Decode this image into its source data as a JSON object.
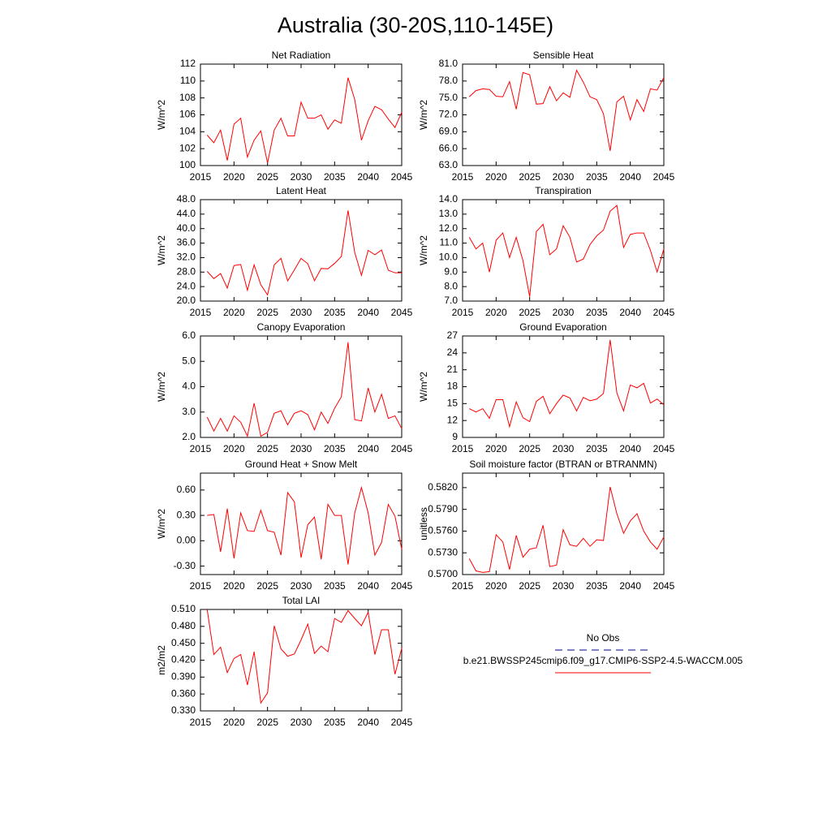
{
  "title": "Australia (30-20S,110-145E)",
  "chart_data": [
    {
      "type": "line",
      "title": "Net Radiation",
      "ylabel": "W/m^2",
      "xlim": [
        2015,
        2045
      ],
      "xticks": [
        2015,
        2020,
        2025,
        2030,
        2035,
        2040,
        2045
      ],
      "ylim": [
        100,
        112
      ],
      "yticks": [
        100,
        102,
        104,
        106,
        108,
        110,
        112
      ],
      "x": [
        2016,
        2017,
        2018,
        2019,
        2020,
        2021,
        2022,
        2023,
        2024,
        2025,
        2026,
        2027,
        2028,
        2029,
        2030,
        2031,
        2032,
        2033,
        2034,
        2035,
        2036,
        2037,
        2038,
        2039,
        2040,
        2041,
        2042,
        2043,
        2044,
        2045
      ],
      "series": [
        {
          "color": "#ff0000",
          "values": [
            103.6,
            102.7,
            104.2,
            100.6,
            104.9,
            105.6,
            101.0,
            103.0,
            104.1,
            100.3,
            104.2,
            105.6,
            103.5,
            103.5,
            107.5,
            105.6,
            105.6,
            106.0,
            104.3,
            105.4,
            105.0,
            110.4,
            107.8,
            103.0,
            105.3,
            107.0,
            106.6,
            105.5,
            104.5,
            106.3
          ]
        }
      ]
    },
    {
      "type": "line",
      "title": "Sensible Heat",
      "ylabel": "W/m^2",
      "xlim": [
        2015,
        2045
      ],
      "xticks": [
        2015,
        2020,
        2025,
        2030,
        2035,
        2040,
        2045
      ],
      "ylim": [
        63,
        81
      ],
      "yticks": [
        {
          "value": 63,
          "label": "63.0"
        },
        {
          "value": 66,
          "label": "66.0"
        },
        {
          "value": 69,
          "label": "69.0"
        },
        {
          "value": 72,
          "label": "72.0"
        },
        {
          "value": 75,
          "label": "75.0"
        },
        {
          "value": 78,
          "label": "78.0"
        },
        {
          "value": 81,
          "label": "81.0"
        }
      ],
      "x": [
        2016,
        2017,
        2018,
        2019,
        2020,
        2021,
        2022,
        2023,
        2024,
        2025,
        2026,
        2027,
        2028,
        2029,
        2030,
        2031,
        2032,
        2033,
        2034,
        2035,
        2036,
        2037,
        2038,
        2039,
        2040,
        2041,
        2042,
        2043,
        2044,
        2045
      ],
      "series": [
        {
          "color": "#ff0000",
          "values": [
            75.2,
            76.3,
            76.6,
            76.5,
            75.3,
            75.2,
            77.9,
            73.0,
            79.5,
            79.1,
            73.9,
            74.0,
            77.0,
            74.5,
            75.9,
            75.1,
            79.9,
            77.8,
            75.2,
            74.7,
            72.2,
            65.6,
            74.3,
            75.3,
            71.1,
            74.7,
            72.6,
            76.6,
            76.4,
            78.6
          ]
        }
      ]
    },
    {
      "type": "line",
      "title": "Latent Heat",
      "ylabel": "W/m^2",
      "xlim": [
        2015,
        2045
      ],
      "xticks": [
        2015,
        2020,
        2025,
        2030,
        2035,
        2040,
        2045
      ],
      "ylim": [
        20,
        48
      ],
      "yticks": [
        {
          "value": 20,
          "label": "20.0"
        },
        {
          "value": 24,
          "label": "24.0"
        },
        {
          "value": 28,
          "label": "28.0"
        },
        {
          "value": 32,
          "label": "32.0"
        },
        {
          "value": 36,
          "label": "36.0"
        },
        {
          "value": 40,
          "label": "40.0"
        },
        {
          "value": 44,
          "label": "44.0"
        },
        {
          "value": 48,
          "label": "48.0"
        }
      ],
      "x": [
        2016,
        2017,
        2018,
        2019,
        2020,
        2021,
        2022,
        2023,
        2024,
        2025,
        2026,
        2027,
        2028,
        2029,
        2030,
        2031,
        2032,
        2033,
        2034,
        2035,
        2036,
        2037,
        2038,
        2039,
        2040,
        2041,
        2042,
        2043,
        2044,
        2045
      ],
      "series": [
        {
          "color": "#ff0000",
          "values": [
            28.2,
            26.2,
            27.6,
            23.6,
            29.8,
            30.1,
            23.0,
            30.0,
            24.5,
            21.7,
            30.0,
            31.8,
            25.6,
            28.6,
            31.8,
            30.3,
            25.6,
            29.0,
            28.9,
            30.4,
            32.3,
            45.0,
            33.4,
            27.1,
            34.0,
            32.8,
            34.1,
            28.5,
            27.8,
            27.8
          ]
        }
      ]
    },
    {
      "type": "line",
      "title": "Transpiration",
      "ylabel": "W/m^2",
      "xlim": [
        2015,
        2045
      ],
      "xticks": [
        2015,
        2020,
        2025,
        2030,
        2035,
        2040,
        2045
      ],
      "ylim": [
        7,
        14
      ],
      "yticks": [
        {
          "value": 7,
          "label": "7.0"
        },
        {
          "value": 8,
          "label": "8.0"
        },
        {
          "value": 9,
          "label": "9.0"
        },
        {
          "value": 10,
          "label": "10.0"
        },
        {
          "value": 11,
          "label": "11.0"
        },
        {
          "value": 12,
          "label": "12.0"
        },
        {
          "value": 13,
          "label": "13.0"
        },
        {
          "value": 14,
          "label": "14.0"
        }
      ],
      "x": [
        2016,
        2017,
        2018,
        2019,
        2020,
        2021,
        2022,
        2023,
        2024,
        2025,
        2026,
        2027,
        2028,
        2029,
        2030,
        2031,
        2032,
        2033,
        2034,
        2035,
        2036,
        2037,
        2038,
        2039,
        2040,
        2041,
        2042,
        2043,
        2044,
        2045
      ],
      "series": [
        {
          "color": "#ff0000",
          "values": [
            11.4,
            10.6,
            11.0,
            9.0,
            11.2,
            11.7,
            10.0,
            11.4,
            9.8,
            7.3,
            11.8,
            12.3,
            10.2,
            10.6,
            12.2,
            11.4,
            9.7,
            9.9,
            10.9,
            11.5,
            11.9,
            13.2,
            13.6,
            10.7,
            11.6,
            11.7,
            11.7,
            10.5,
            9.0,
            10.6
          ]
        }
      ]
    },
    {
      "type": "line",
      "title": "Canopy Evaporation",
      "ylabel": "W/m^2",
      "xlim": [
        2015,
        2045
      ],
      "xticks": [
        2015,
        2020,
        2025,
        2030,
        2035,
        2040,
        2045
      ],
      "ylim": [
        2,
        6
      ],
      "yticks": [
        {
          "value": 2,
          "label": "2.0"
        },
        {
          "value": 3,
          "label": "3.0"
        },
        {
          "value": 4,
          "label": "4.0"
        },
        {
          "value": 5,
          "label": "5.0"
        },
        {
          "value": 6,
          "label": "6.0"
        }
      ],
      "x": [
        2016,
        2017,
        2018,
        2019,
        2020,
        2021,
        2022,
        2023,
        2024,
        2025,
        2026,
        2027,
        2028,
        2029,
        2030,
        2031,
        2032,
        2033,
        2034,
        2035,
        2036,
        2037,
        2038,
        2039,
        2040,
        2041,
        2042,
        2043,
        2044,
        2045
      ],
      "series": [
        {
          "color": "#ff0000",
          "values": [
            2.8,
            2.25,
            2.75,
            2.25,
            2.85,
            2.6,
            2.05,
            3.35,
            2.05,
            2.2,
            2.95,
            3.05,
            2.5,
            2.95,
            3.05,
            2.9,
            2.3,
            3.0,
            2.55,
            3.15,
            3.6,
            5.75,
            2.7,
            2.65,
            3.95,
            3.0,
            3.7,
            2.75,
            2.85,
            2.35
          ]
        }
      ]
    },
    {
      "type": "line",
      "title": "Ground Evaporation",
      "ylabel": "W/m^2",
      "xlim": [
        2015,
        2045
      ],
      "xticks": [
        2015,
        2020,
        2025,
        2030,
        2035,
        2040,
        2045
      ],
      "ylim": [
        9,
        27
      ],
      "yticks": [
        9,
        12,
        15,
        18,
        21,
        24,
        27
      ],
      "x": [
        2016,
        2017,
        2018,
        2019,
        2020,
        2021,
        2022,
        2023,
        2024,
        2025,
        2026,
        2027,
        2028,
        2029,
        2030,
        2031,
        2032,
        2033,
        2034,
        2035,
        2036,
        2037,
        2038,
        2039,
        2040,
        2041,
        2042,
        2043,
        2044,
        2045
      ],
      "series": [
        {
          "color": "#ff0000",
          "values": [
            14.1,
            13.5,
            14.1,
            12.4,
            15.7,
            15.7,
            10.9,
            15.3,
            12.5,
            11.8,
            15.4,
            16.3,
            13.2,
            15.0,
            16.5,
            16.0,
            13.7,
            16.1,
            15.5,
            15.8,
            16.8,
            26.3,
            16.9,
            13.7,
            18.3,
            17.8,
            18.6,
            15.1,
            15.8,
            14.8
          ]
        }
      ]
    },
    {
      "type": "line",
      "title": "Ground Heat + Snow Melt",
      "ylabel": "W/m^2",
      "xlim": [
        2015,
        2045
      ],
      "xticks": [
        2015,
        2020,
        2025,
        2030,
        2035,
        2040,
        2045
      ],
      "ylim": [
        -0.4,
        0.8
      ],
      "yticks": [
        {
          "value": -0.3,
          "label": "-0.30"
        },
        {
          "value": 0,
          "label": "0.00"
        },
        {
          "value": 0.3,
          "label": "0.30"
        },
        {
          "value": 0.6,
          "label": "0.60"
        }
      ],
      "x": [
        2016,
        2017,
        2018,
        2019,
        2020,
        2021,
        2022,
        2023,
        2024,
        2025,
        2026,
        2027,
        2028,
        2029,
        2030,
        2031,
        2032,
        2033,
        2034,
        2035,
        2036,
        2037,
        2038,
        2039,
        2040,
        2041,
        2042,
        2043,
        2044,
        2045
      ],
      "series": [
        {
          "color": "#ff0000",
          "values": [
            0.3,
            0.31,
            -0.13,
            0.38,
            -0.21,
            0.33,
            0.12,
            0.11,
            0.36,
            0.12,
            0.1,
            -0.17,
            0.57,
            0.46,
            -0.2,
            0.19,
            0.28,
            -0.22,
            0.43,
            0.3,
            0.3,
            -0.28,
            0.33,
            0.63,
            0.33,
            -0.17,
            -0.02,
            0.43,
            0.29,
            -0.1
          ]
        }
      ]
    },
    {
      "type": "line",
      "title": "Soil moisture factor (BTRAN or BTRANMN)",
      "ylabel": "unitless",
      "xlim": [
        2015,
        2045
      ],
      "xticks": [
        2015,
        2020,
        2025,
        2030,
        2035,
        2040,
        2045
      ],
      "ylim": [
        0.57,
        0.584
      ],
      "yticks": [
        {
          "value": 0.57,
          "label": "0.5700"
        },
        {
          "value": 0.573,
          "label": "0.5730"
        },
        {
          "value": 0.576,
          "label": "0.5760"
        },
        {
          "value": 0.579,
          "label": "0.5790"
        },
        {
          "value": 0.582,
          "label": "0.5820"
        }
      ],
      "x": [
        2016,
        2017,
        2018,
        2019,
        2020,
        2021,
        2022,
        2023,
        2024,
        2025,
        2026,
        2027,
        2028,
        2029,
        2030,
        2031,
        2032,
        2033,
        2034,
        2035,
        2036,
        2037,
        2038,
        2039,
        2040,
        2041,
        2042,
        2043,
        2044,
        2045
      ],
      "series": [
        {
          "color": "#ff0000",
          "values": [
            0.5722,
            0.5705,
            0.5703,
            0.5704,
            0.5755,
            0.5745,
            0.5707,
            0.5754,
            0.5724,
            0.5735,
            0.5737,
            0.5768,
            0.5711,
            0.5713,
            0.5762,
            0.5741,
            0.5739,
            0.575,
            0.5739,
            0.5748,
            0.5747,
            0.5821,
            0.5784,
            0.5757,
            0.5774,
            0.5784,
            0.576,
            0.5745,
            0.5735,
            0.5752
          ]
        }
      ]
    },
    {
      "type": "line",
      "title": "Total LAI",
      "ylabel": "m2/m2",
      "xlim": [
        2015,
        2045
      ],
      "xticks": [
        2015,
        2020,
        2025,
        2030,
        2035,
        2040,
        2045
      ],
      "ylim": [
        0.33,
        0.51
      ],
      "yticks": [
        {
          "value": 0.33,
          "label": "0.330"
        },
        {
          "value": 0.36,
          "label": "0.360"
        },
        {
          "value": 0.39,
          "label": "0.390"
        },
        {
          "value": 0.42,
          "label": "0.420"
        },
        {
          "value": 0.45,
          "label": "0.450"
        },
        {
          "value": 0.48,
          "label": "0.480"
        },
        {
          "value": 0.51,
          "label": "0.510"
        }
      ],
      "x": [
        2016,
        2017,
        2018,
        2019,
        2020,
        2021,
        2022,
        2023,
        2024,
        2025,
        2026,
        2027,
        2028,
        2029,
        2030,
        2031,
        2032,
        2033,
        2034,
        2035,
        2036,
        2037,
        2038,
        2039,
        2040,
        2041,
        2042,
        2043,
        2044,
        2045
      ],
      "series": [
        {
          "color": "#ff0000",
          "values": [
            0.51,
            0.43,
            0.443,
            0.398,
            0.423,
            0.43,
            0.376,
            0.435,
            0.344,
            0.362,
            0.481,
            0.44,
            0.427,
            0.431,
            0.456,
            0.484,
            0.432,
            0.445,
            0.435,
            0.494,
            0.487,
            0.508,
            0.494,
            0.481,
            0.505,
            0.43,
            0.474,
            0.474,
            0.395,
            0.441
          ]
        }
      ]
    }
  ],
  "legend": [
    {
      "name": "No Obs",
      "color": "#00008b",
      "dashed": true
    },
    {
      "name": "b.e21.BWSSP245cmip6.f09_g17.CMIP6-SSP2-4.5-WACCM.005",
      "color": "#ff0000",
      "dashed": false
    }
  ]
}
